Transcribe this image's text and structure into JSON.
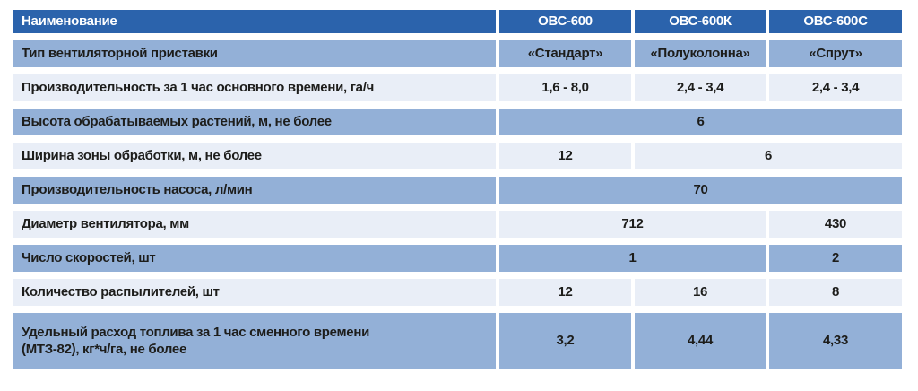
{
  "colors": {
    "page_bg": "#ffffff",
    "header_bg": "#2b63ac",
    "header_text": "#ffffff",
    "row_medium_bg": "#93b0d7",
    "row_light_bg": "#e9eef7",
    "body_text": "#1d1d1b"
  },
  "table": {
    "header": {
      "name": "Наименование",
      "models": [
        "ОВС-600",
        "ОВС-600К",
        "ОВС-600С"
      ]
    },
    "rows": [
      {
        "label": "Тип вентиляторной приставки",
        "values": [
          "«Стандарт»",
          "«Полуколонна»",
          "«Спрут»"
        ]
      },
      {
        "label": "Производительность за 1 час основного времени, га/ч",
        "values": [
          "1,6 - 8,0",
          "2,4 - 3,4",
          "2,4 - 3,4"
        ]
      },
      {
        "label": "Высота обрабатываемых растений, м, не более",
        "values": [
          "6"
        ]
      },
      {
        "label": "Ширина зоны обработки, м, не более",
        "values": [
          "12",
          "6"
        ]
      },
      {
        "label": "Производительность насоса, л/мин",
        "values": [
          "70"
        ]
      },
      {
        "label": "Диаметр вентилятора, мм",
        "values": [
          "712",
          "430"
        ]
      },
      {
        "label": "Число скоростей, шт",
        "values": [
          "1",
          "2"
        ]
      },
      {
        "label": "Количество распылителей, шт",
        "values": [
          "12",
          "16",
          "8"
        ]
      },
      {
        "label": "Удельный расход топлива за 1 час сменного времени\n(МТЗ-82), кг*ч/га, не более",
        "values": [
          "3,2",
          "4,44",
          "4,33"
        ]
      }
    ]
  }
}
